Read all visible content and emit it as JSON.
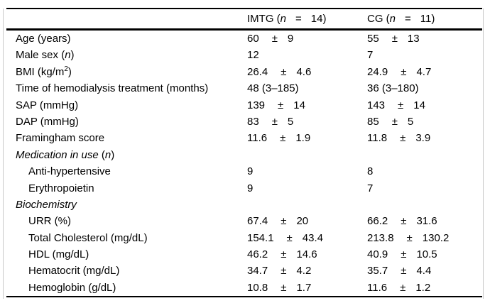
{
  "figure": {
    "background": "#ffffff",
    "border_color": "#c9c9c9",
    "rule_color": "#000000"
  },
  "table": {
    "columns": [
      {
        "name": "IMTG",
        "parts": [
          {
            "t": "IMTG ("
          },
          {
            "t": "n",
            "i": true
          },
          {
            "t": "=",
            "eq": true
          },
          {
            "t": "14)"
          }
        ]
      },
      {
        "name": "CG",
        "parts": [
          {
            "t": "CG ("
          },
          {
            "t": "n",
            "i": true
          },
          {
            "t": "=",
            "eq": true
          },
          {
            "t": "11)"
          }
        ]
      }
    ],
    "rows": [
      {
        "label": [
          {
            "t": "Age (years)"
          }
        ],
        "indent": false,
        "imtg": {
          "mean": "60",
          "pm": "±",
          "sd": "9"
        },
        "cg": {
          "mean": "55",
          "pm": "±",
          "sd": "13"
        }
      },
      {
        "label": [
          {
            "t": "Male sex ("
          },
          {
            "t": "n",
            "i": true
          },
          {
            "t": ")"
          }
        ],
        "indent": false,
        "imtg": {
          "mean": "12"
        },
        "cg": {
          "mean": "7"
        }
      },
      {
        "label": [
          {
            "t": "BMI (kg/m"
          },
          {
            "t": "2",
            "sup": true
          },
          {
            "t": ")"
          }
        ],
        "indent": false,
        "imtg": {
          "mean": "26.4",
          "pm": "±",
          "sd": "4.6"
        },
        "cg": {
          "mean": "24.9",
          "pm": "±",
          "sd": "4.7"
        }
      },
      {
        "label": [
          {
            "t": "Time of hemodialysis treatment (months)"
          }
        ],
        "indent": false,
        "imtg": {
          "mean": "48 (3–185)"
        },
        "cg": {
          "mean": "36 (3–180)"
        }
      },
      {
        "label": [
          {
            "t": "SAP (mmHg)"
          }
        ],
        "indent": false,
        "imtg": {
          "mean": "139",
          "pm": "±",
          "sd": "14"
        },
        "cg": {
          "mean": "143",
          "pm": "±",
          "sd": "14"
        }
      },
      {
        "label": [
          {
            "t": "DAP (mmHg)"
          }
        ],
        "indent": false,
        "imtg": {
          "mean": "83",
          "pm": "±",
          "sd": "5"
        },
        "cg": {
          "mean": "85",
          "pm": "±",
          "sd": "5"
        }
      },
      {
        "label": [
          {
            "t": "Framingham score"
          }
        ],
        "indent": false,
        "imtg": {
          "mean": "11.6",
          "pm": "±",
          "sd": "1.9"
        },
        "cg": {
          "mean": "11.8",
          "pm": "±",
          "sd": "3.9"
        }
      },
      {
        "label": [
          {
            "t": "Medication in use",
            "i": true
          },
          {
            "t": " ("
          },
          {
            "t": "n",
            "i": true
          },
          {
            "t": ")"
          }
        ],
        "indent": false,
        "imtg": null,
        "cg": null
      },
      {
        "label": [
          {
            "t": "Anti-hypertensive"
          }
        ],
        "indent": true,
        "imtg": {
          "mean": "9"
        },
        "cg": {
          "mean": "8"
        }
      },
      {
        "label": [
          {
            "t": "Erythropoietin"
          }
        ],
        "indent": true,
        "imtg": {
          "mean": "9"
        },
        "cg": {
          "mean": "7"
        }
      },
      {
        "label": [
          {
            "t": "Biochemistry",
            "i": true
          }
        ],
        "indent": false,
        "imtg": null,
        "cg": null
      },
      {
        "label": [
          {
            "t": "URR (%)"
          }
        ],
        "indent": true,
        "imtg": {
          "mean": "67.4",
          "pm": "±",
          "sd": "20"
        },
        "cg": {
          "mean": "66.2",
          "pm": "±",
          "sd": "31.6"
        }
      },
      {
        "label": [
          {
            "t": "Total Cholesterol (mg/dL)"
          }
        ],
        "indent": true,
        "imtg": {
          "mean": "154.1",
          "pm": "±",
          "sd": "43.4"
        },
        "cg": {
          "mean": "213.8",
          "pm": "±",
          "sd": "130.2"
        }
      },
      {
        "label": [
          {
            "t": "HDL (mg/dL)"
          }
        ],
        "indent": true,
        "imtg": {
          "mean": "46.2",
          "pm": "±",
          "sd": "14.6"
        },
        "cg": {
          "mean": "40.9",
          "pm": "±",
          "sd": "10.5"
        }
      },
      {
        "label": [
          {
            "t": "Hematocrit (mg/dL)"
          }
        ],
        "indent": true,
        "imtg": {
          "mean": "34.7",
          "pm": "±",
          "sd": "4.2"
        },
        "cg": {
          "mean": "35.7",
          "pm": "±",
          "sd": "4.4"
        }
      },
      {
        "label": [
          {
            "t": "Hemoglobin (g/dL)"
          }
        ],
        "indent": true,
        "imtg": {
          "mean": "10.8",
          "pm": "±",
          "sd": "1.7"
        },
        "cg": {
          "mean": "11.6",
          "pm": "±",
          "sd": "1.2"
        }
      }
    ]
  }
}
